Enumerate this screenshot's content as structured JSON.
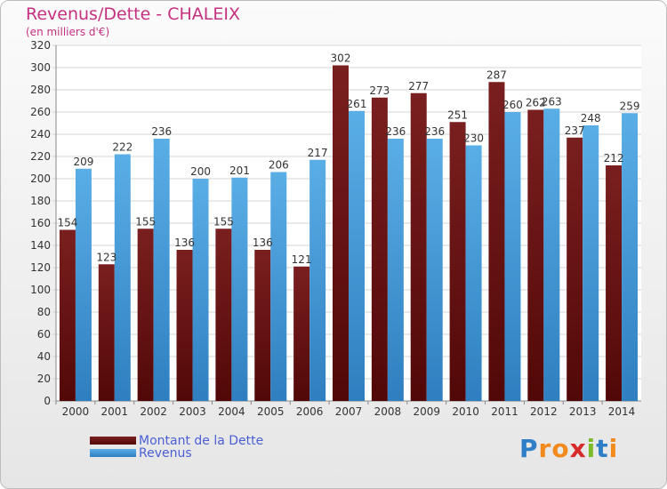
{
  "header": {
    "title": "Revenus/Dette - CHALEIX",
    "subtitle": "(en milliers d'€)"
  },
  "legend": {
    "debt_label": "Montant de la Dette",
    "revenue_label": "Revenus"
  },
  "logo": {
    "text": "Proxiti",
    "letters": [
      "P",
      "r",
      "o",
      "x",
      "i",
      "t",
      "i"
    ],
    "colors": [
      "#2e7fc8",
      "#f28a1d",
      "#f28a1d",
      "#d72a2a",
      "#7cbb2a",
      "#2e7fc8",
      "#f28a1d"
    ]
  },
  "colors": {
    "debt": "#7a1f1f",
    "debt_dark": "#520808",
    "revenue": "#5aaee6",
    "revenue_dark": "#2f7fc0",
    "title": "#c5307f",
    "legend_text": "#4a5fd6"
  },
  "chart_data": {
    "type": "bar",
    "title": "Revenus/Dette - CHALEIX",
    "subtitle": "(en milliers d'€)",
    "categories": [
      "2000",
      "2001",
      "2002",
      "2003",
      "2004",
      "2005",
      "2006",
      "2007",
      "2008",
      "2009",
      "2010",
      "2011",
      "2012",
      "2013",
      "2014"
    ],
    "series": [
      {
        "name": "Montant de la Dette",
        "values": [
          154,
          123,
          155,
          136,
          155,
          136,
          121,
          302,
          273,
          277,
          251,
          287,
          262,
          237,
          212
        ]
      },
      {
        "name": "Revenus",
        "values": [
          209,
          222,
          236,
          200,
          201,
          206,
          217,
          261,
          236,
          236,
          230,
          260,
          263,
          248,
          259
        ]
      }
    ],
    "ylim": [
      0,
      320
    ],
    "yticks": [
      0,
      20,
      40,
      60,
      80,
      100,
      120,
      140,
      160,
      180,
      200,
      220,
      240,
      260,
      280,
      300,
      320
    ],
    "grid": true,
    "legend_position": "bottom-left"
  }
}
